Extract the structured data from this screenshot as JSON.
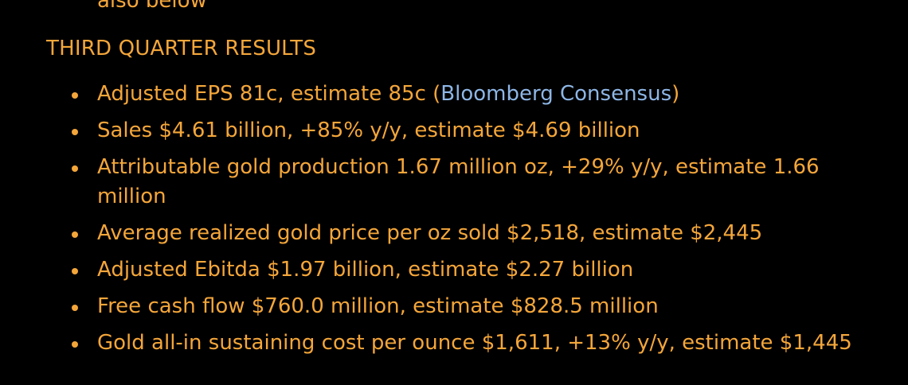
{
  "previous_line": "also below",
  "section": {
    "title": "THIRD QUARTER RESULTS"
  },
  "bullets": [
    {
      "before": "Adjusted EPS 81c, estimate 85c (",
      "link": "Bloomberg Consensus",
      "after": ")"
    },
    {
      "text": "Sales $4.61 billion, +85% y/y, estimate $4.69 billion"
    },
    {
      "text": "Attributable gold production 1.67 million oz, +29% y/y, estimate 1.66 million"
    },
    {
      "text": "Average realized gold price per oz sold $2,518, estimate $2,445"
    },
    {
      "text": "Adjusted Ebitda $1.97 billion, estimate $2.27 billion"
    },
    {
      "text": "Free cash flow $760.0 million, estimate $828.5 million"
    },
    {
      "text": "Gold all-in sustaining cost per ounce $1,611, +13% y/y, estimate $1,445"
    }
  ],
  "colors": {
    "background": "#000000",
    "text": "#f4a63a",
    "link": "#8eb6e6"
  },
  "icons": {
    "bullet": "bullet-dot-icon"
  }
}
